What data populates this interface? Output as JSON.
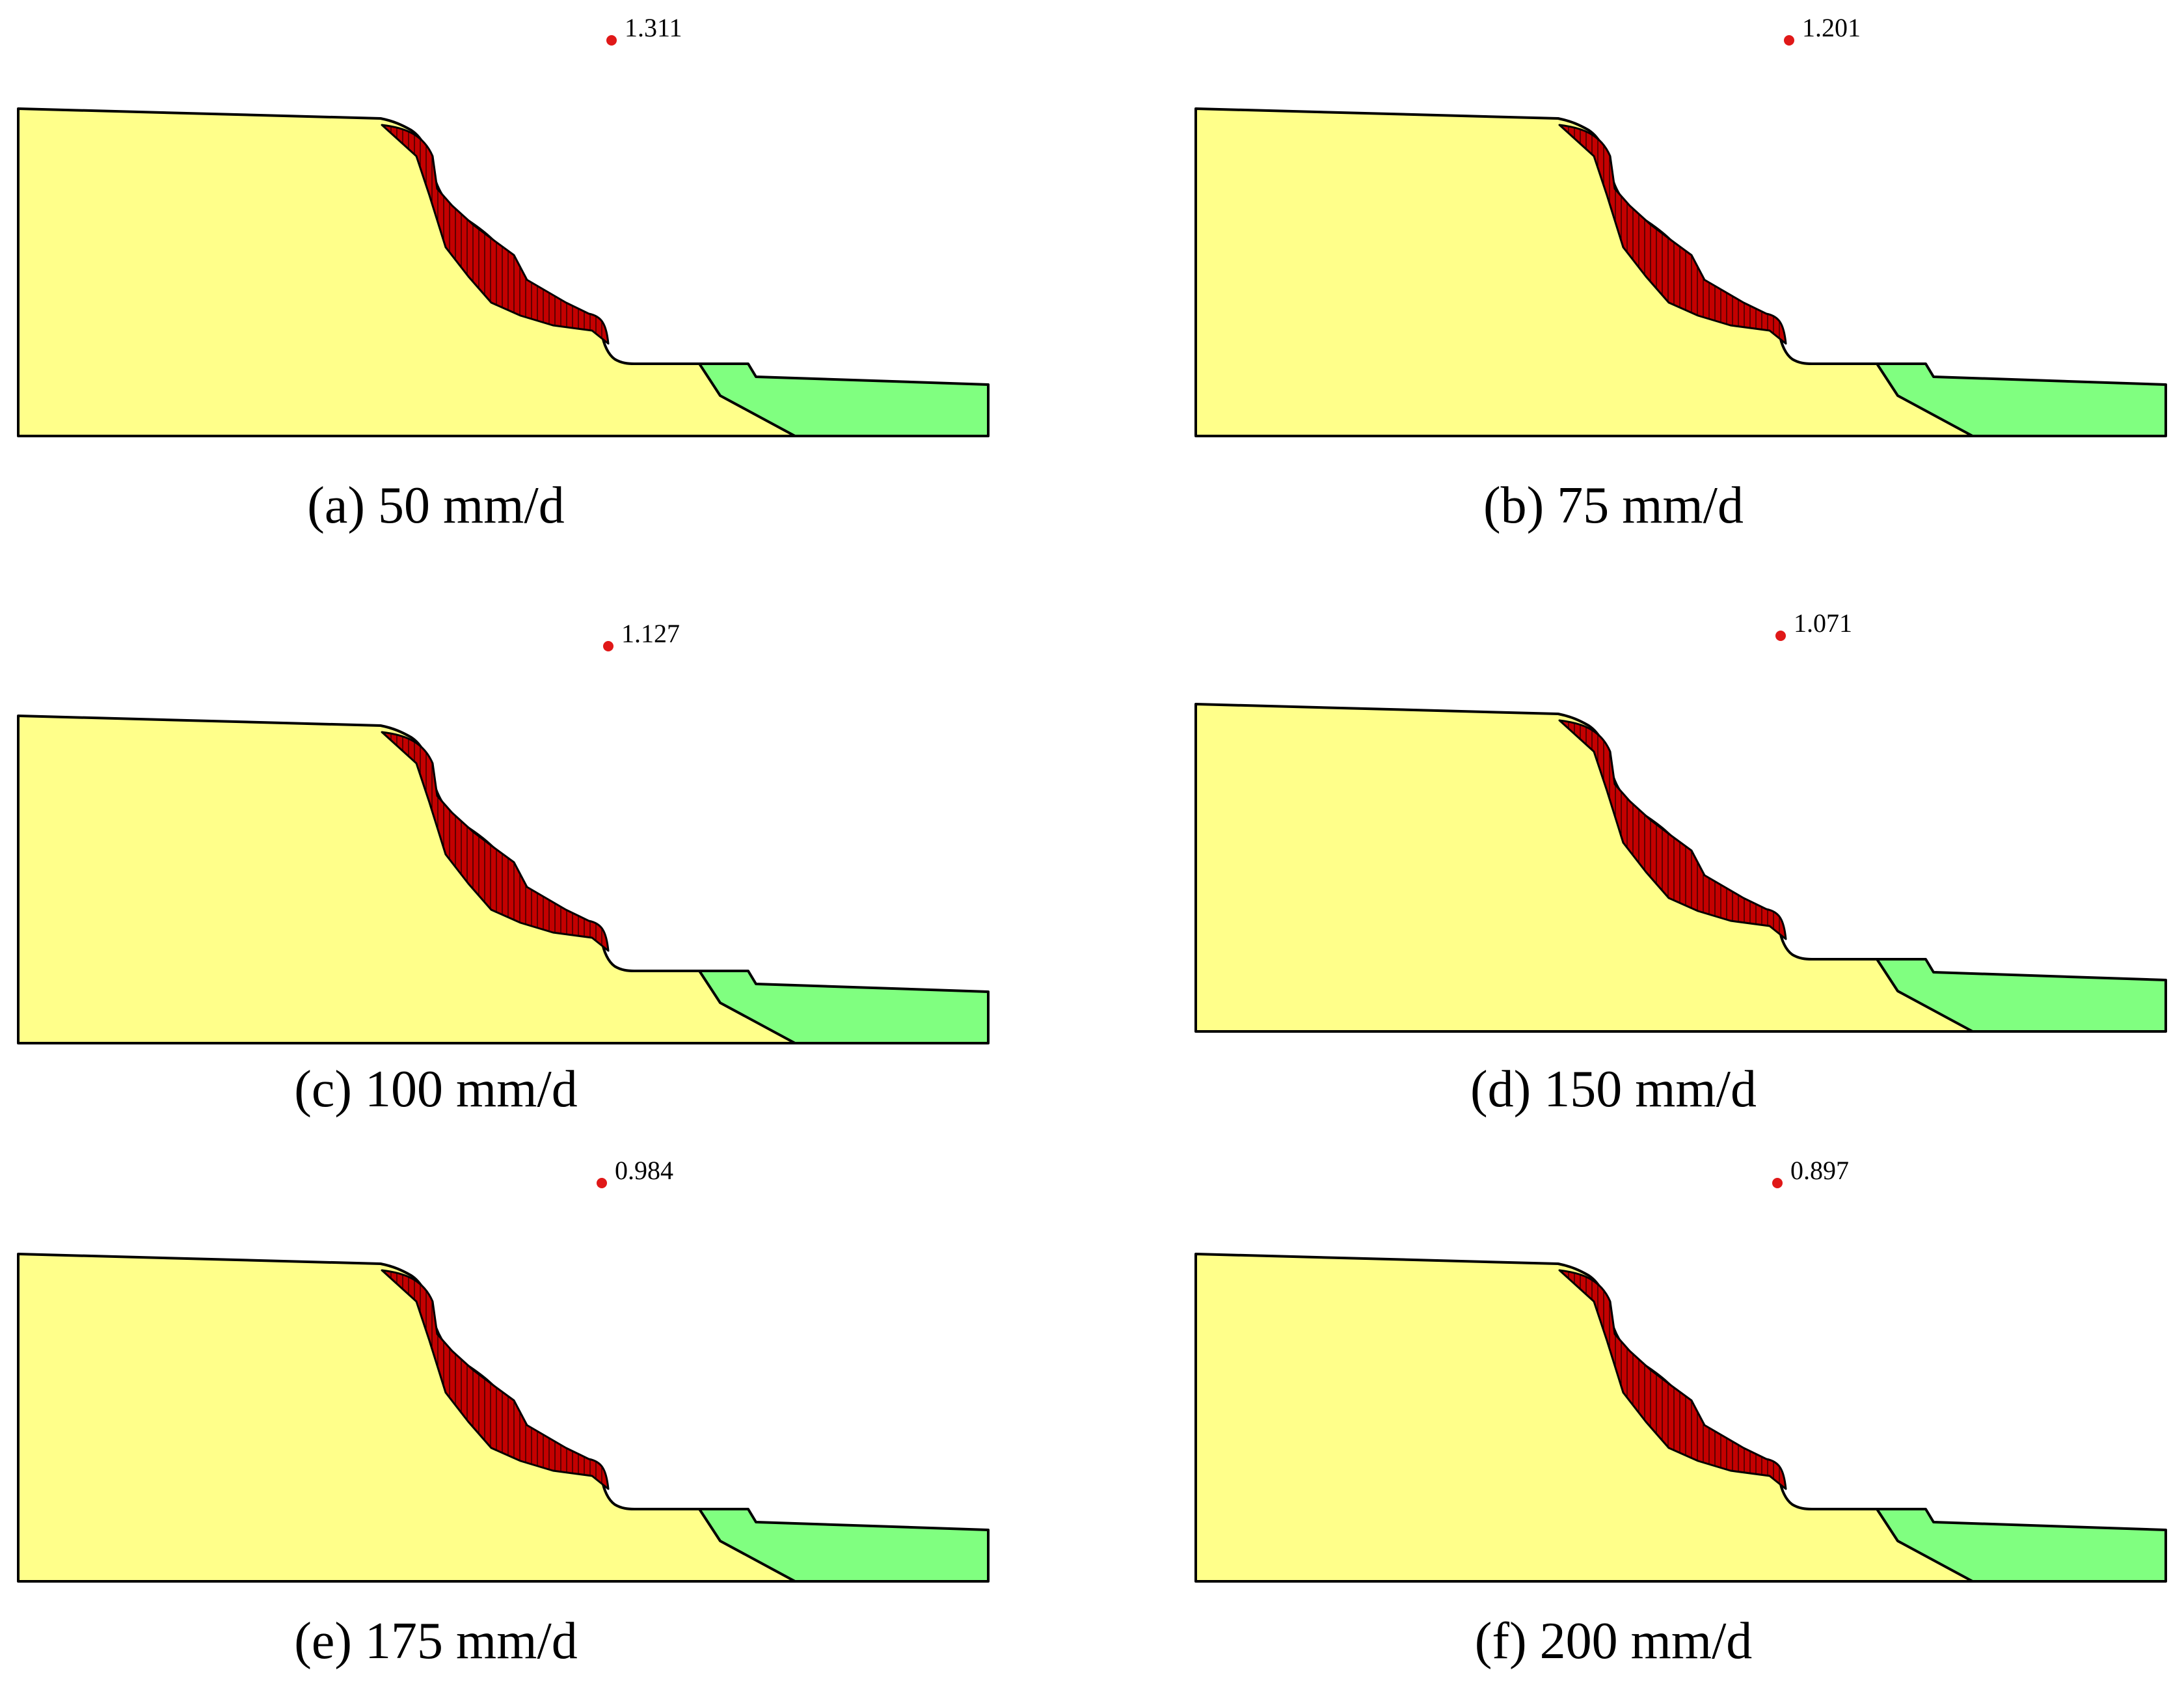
{
  "colors": {
    "soil": "#FFFF8A",
    "lower_layer": "#80FF80",
    "slip_mass": "#C40000",
    "slice_lines": "#000000",
    "outline": "#000000",
    "slip_center": "#E01818",
    "background": "#FFFFFF"
  },
  "panels": [
    {
      "caption": "(a) 50 mm/d",
      "factor_of_safety": "1.311"
    },
    {
      "caption": "(b) 75 mm/d",
      "factor_of_safety": "1.201"
    },
    {
      "caption": "(c) 100 mm/d",
      "factor_of_safety": "1.127"
    },
    {
      "caption": "(d) 150 mm/d",
      "factor_of_safety": "1.071"
    },
    {
      "caption": "(e) 175 mm/d",
      "factor_of_safety": "0.984"
    },
    {
      "caption": "(f) 200 mm/d",
      "factor_of_safety": "0.897"
    }
  ]
}
